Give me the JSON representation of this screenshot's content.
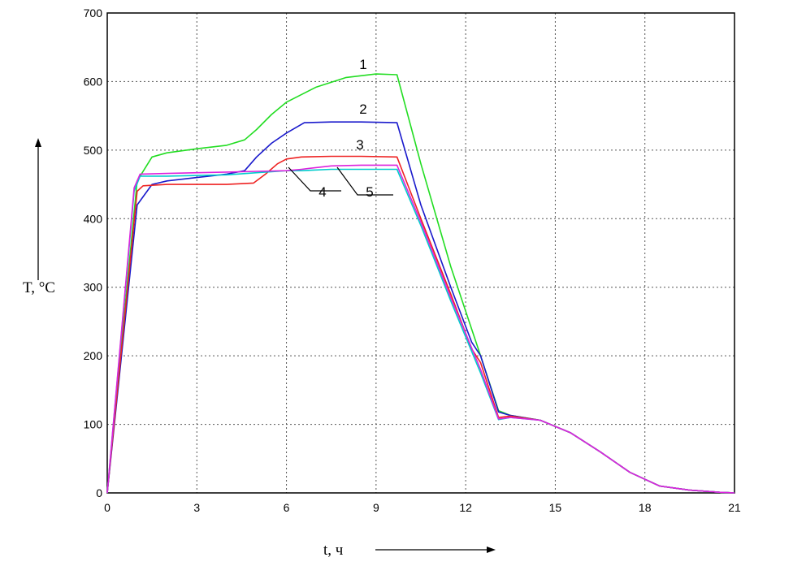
{
  "chart_data": {
    "type": "line",
    "xlabel": "t, ч",
    "ylabel": "T, °C",
    "xlim": [
      0,
      21
    ],
    "ylim": [
      0,
      700
    ],
    "xticks": [
      0,
      3,
      6,
      9,
      12,
      15,
      18,
      21
    ],
    "yticks": [
      0,
      100,
      200,
      300,
      400,
      500,
      600,
      700
    ],
    "grid": true,
    "series": [
      {
        "name": "1",
        "color": "#22dd22",
        "x": [
          0,
          1.0,
          1.5,
          2.0,
          3.0,
          4.0,
          4.6,
          5.0,
          5.5,
          6.0,
          7.0,
          8.0,
          9.0,
          9.7,
          10.5,
          11.5,
          12.5,
          13.1,
          13.5,
          14.5,
          15.5,
          16.5,
          17.5,
          18.5,
          19.5,
          20.5,
          21.0
        ],
        "y": [
          0,
          455,
          490,
          496,
          502,
          507,
          515,
          530,
          552,
          570,
          592,
          606,
          611,
          610,
          480,
          330,
          200,
          120,
          113,
          106,
          88,
          60,
          30,
          10,
          4,
          1,
          0
        ]
      },
      {
        "name": "2",
        "color": "#1a1acc",
        "x": [
          0,
          1.0,
          1.5,
          2.0,
          3.0,
          4.0,
          4.6,
          5.0,
          5.5,
          6.0,
          6.6,
          7.5,
          8.5,
          9.7,
          10.5,
          11.5,
          12.2,
          12.5,
          13.1,
          13.5,
          14.5,
          15.5,
          16.5,
          17.5,
          18.5,
          19.5,
          20.5,
          21.0
        ],
        "y": [
          0,
          420,
          450,
          455,
          460,
          465,
          470,
          490,
          510,
          525,
          540,
          541,
          541,
          540,
          420,
          300,
          220,
          200,
          118,
          113,
          106,
          88,
          60,
          30,
          10,
          4,
          1,
          0
        ]
      },
      {
        "name": "3",
        "color": "#ee2222",
        "x": [
          0,
          1.0,
          1.2,
          2.0,
          3.0,
          4.0,
          4.9,
          5.3,
          5.7,
          6.0,
          6.5,
          7.5,
          8.5,
          9.7,
          10.5,
          11.5,
          12.2,
          12.5,
          13.1,
          13.5,
          14.5,
          15.5,
          16.5,
          17.5,
          18.5,
          19.5,
          20.5,
          21.0
        ],
        "y": [
          0,
          440,
          448,
          450,
          450,
          450,
          452,
          465,
          480,
          487,
          490,
          491,
          491,
          490,
          400,
          290,
          210,
          190,
          110,
          112,
          106,
          88,
          60,
          30,
          10,
          4,
          1,
          0
        ]
      },
      {
        "name": "4",
        "color": "#00cccc",
        "x": [
          0,
          0.9,
          1.1,
          2.0,
          3.0,
          4.0,
          5.0,
          6.0,
          6.5,
          7.5,
          8.5,
          9.7,
          10.5,
          11.5,
          12.5,
          13.1,
          13.5,
          14.5,
          15.5,
          16.5,
          17.5,
          18.5,
          19.5,
          20.5,
          21.0
        ],
        "y": [
          0,
          440,
          462,
          462,
          463,
          464,
          467,
          470,
          470,
          472,
          472,
          472,
          390,
          280,
          175,
          107,
          110,
          106,
          88,
          60,
          30,
          10,
          4,
          1,
          0
        ]
      },
      {
        "name": "5",
        "color": "#dd22dd",
        "x": [
          0,
          0.9,
          1.1,
          2.0,
          3.0,
          4.0,
          5.0,
          6.0,
          6.5,
          7.5,
          8.5,
          9.7,
          10.5,
          11.5,
          12.5,
          13.1,
          13.5,
          14.5,
          15.5,
          16.5,
          17.5,
          18.5,
          19.5,
          20.5,
          21.0
        ],
        "y": [
          0,
          445,
          465,
          466,
          467,
          468,
          469,
          470,
          472,
          477,
          478,
          478,
          395,
          285,
          180,
          108,
          110,
          106,
          88,
          60,
          30,
          10,
          4,
          1,
          0
        ]
      }
    ]
  }
}
